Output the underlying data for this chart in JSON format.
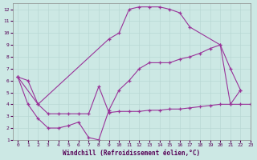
{
  "title": "",
  "xlabel": "Windchill (Refroidissement éolien,°C)",
  "ylabel": "",
  "xlim": [
    -0.5,
    23
  ],
  "ylim": [
    1,
    12.5
  ],
  "xticks": [
    0,
    1,
    2,
    3,
    4,
    5,
    6,
    7,
    8,
    9,
    10,
    11,
    12,
    13,
    14,
    15,
    16,
    17,
    18,
    19,
    20,
    21,
    22,
    23
  ],
  "yticks": [
    1,
    2,
    3,
    4,
    5,
    6,
    7,
    8,
    9,
    10,
    11,
    12
  ],
  "bg_color": "#cce8e4",
  "line_color": "#993399",
  "grid_color": "#b8d8d4",
  "line1_x": [
    0,
    1,
    2,
    9,
    10,
    11,
    12,
    13,
    14,
    15,
    16,
    17,
    20,
    21,
    22
  ],
  "line1_y": [
    6.3,
    6.0,
    4.0,
    9.5,
    10.0,
    12.0,
    12.2,
    12.2,
    12.2,
    12.0,
    11.7,
    10.5,
    9.0,
    7.0,
    5.2
  ],
  "line2_x": [
    0,
    1,
    2,
    3,
    4,
    5,
    6,
    7,
    8,
    9,
    10,
    11,
    12,
    13,
    14,
    15,
    16,
    17,
    18,
    19,
    20,
    21,
    22
  ],
  "line2_y": [
    6.3,
    4.0,
    2.8,
    2.0,
    2.0,
    2.2,
    2.5,
    1.2,
    1.0,
    3.5,
    5.2,
    6.0,
    7.0,
    7.5,
    7.5,
    7.5,
    7.8,
    8.0,
    8.3,
    8.7,
    9.0,
    4.0,
    5.2
  ],
  "line3_x": [
    0,
    2,
    3,
    4,
    5,
    6,
    7,
    8,
    9,
    10,
    11,
    12,
    13,
    14,
    15,
    16,
    17,
    18,
    19,
    20,
    21,
    22,
    23
  ],
  "line3_y": [
    6.3,
    4.0,
    3.2,
    3.2,
    3.2,
    3.2,
    3.2,
    5.5,
    3.3,
    3.4,
    3.4,
    3.4,
    3.5,
    3.5,
    3.6,
    3.6,
    3.7,
    3.8,
    3.9,
    4.0,
    4.0,
    4.0,
    4.0
  ]
}
